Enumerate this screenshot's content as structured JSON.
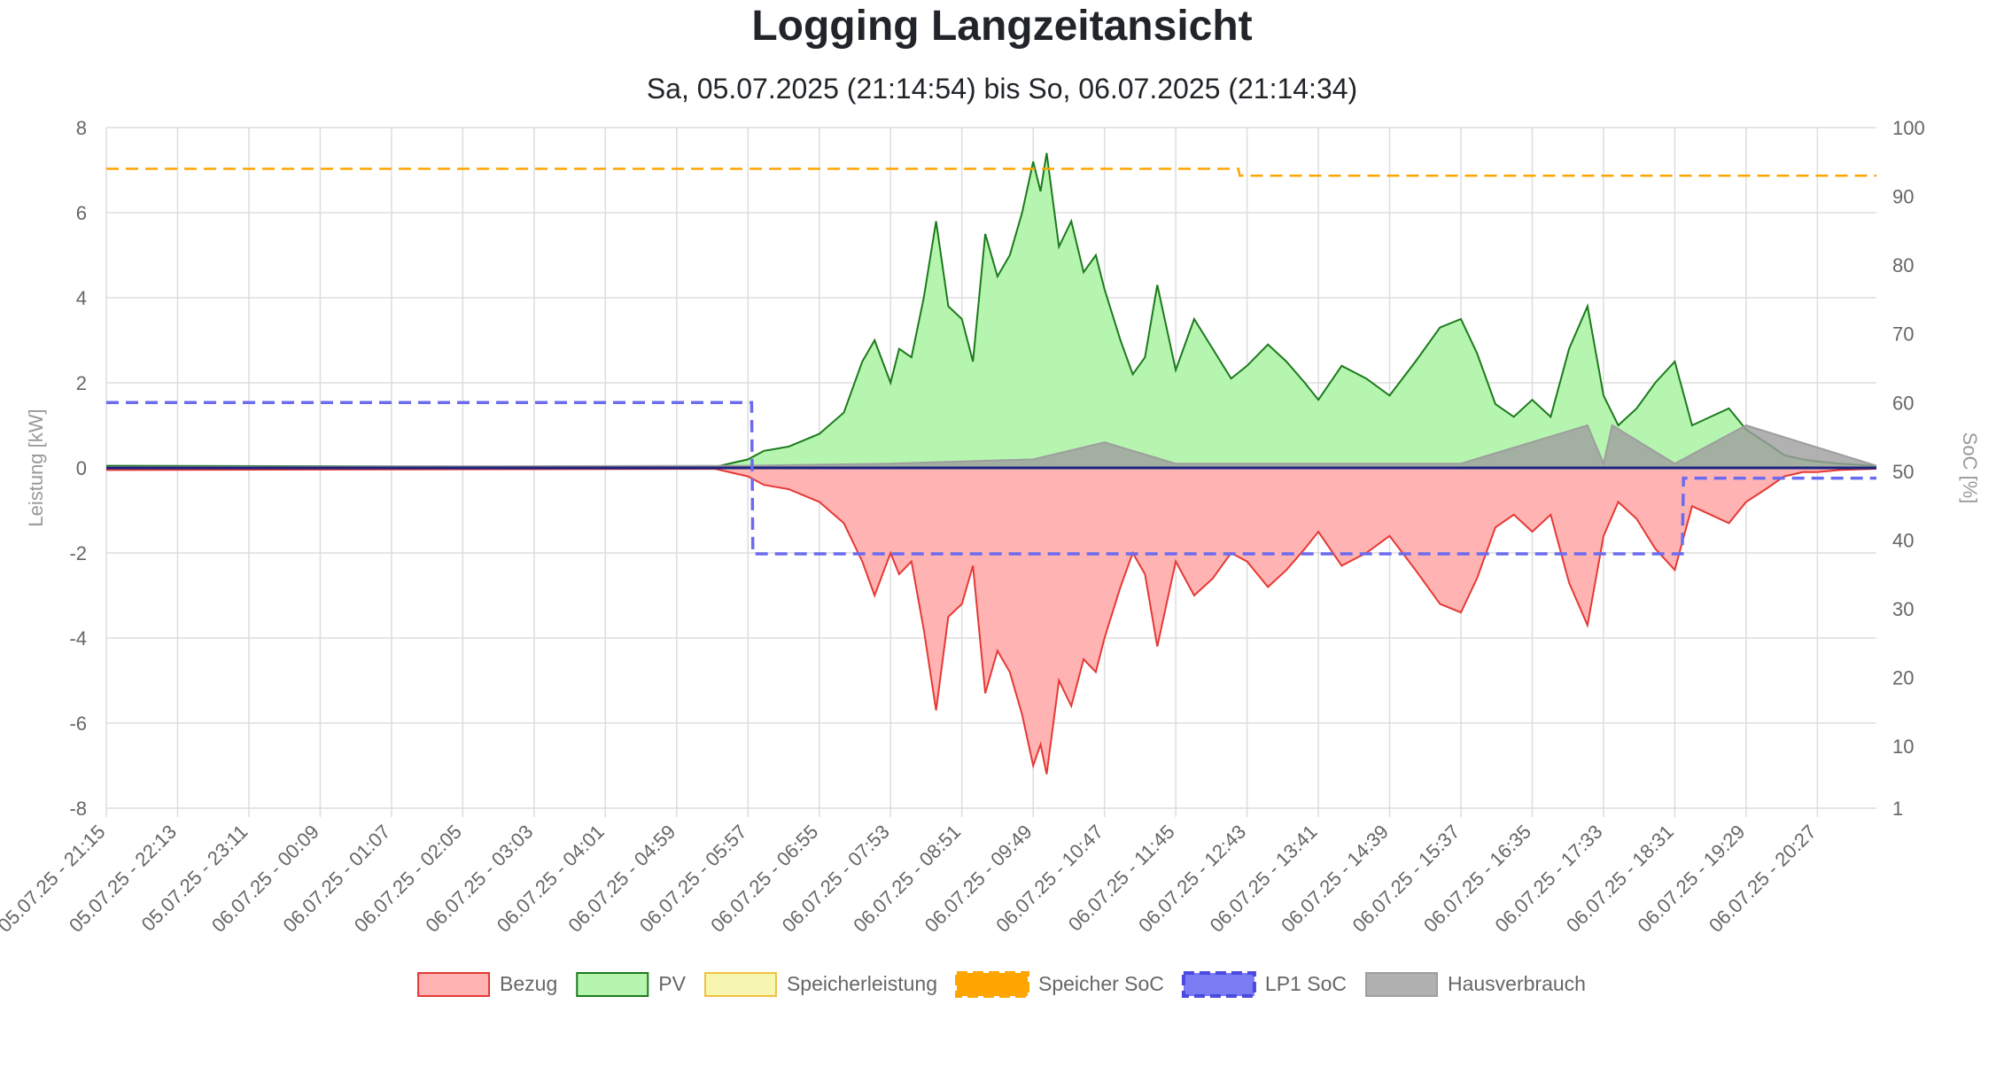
{
  "header": {
    "title": "Logging Langzeitansicht",
    "subtitle": "Sa, 05.07.2025 (21:14:54) bis So, 06.07.2025 (21:14:34)"
  },
  "colors": {
    "bezug_line": "#e53935",
    "bezug_fill": "#ffb3b3",
    "pv_line": "#1b7a1b",
    "pv_fill": "#b6f5b0",
    "speicherleistung_line": "#f0c040",
    "speicherleistung_fill": "#f6f6b0",
    "speicher_soc": "#ffa500",
    "lp1_soc": "#6b6bf0",
    "hausverbrauch": "#9e9e9e",
    "zero_line": "#1a237e",
    "grid": "#dddddd"
  },
  "chart_data": {
    "type": "area",
    "title": "Logging Langzeitansicht",
    "subtitle": "Sa, 05.07.2025 (21:14:54) bis So, 06.07.2025 (21:14:34)",
    "ylabel_left": "Leistung [kW]",
    "ylabel_right": "SoC [%]",
    "ylim_left": [
      -8,
      8
    ],
    "ylim_right": [
      1,
      100
    ],
    "yticks_left": [
      "8",
      "6",
      "4",
      "2",
      "0",
      "-2",
      "-4",
      "-6",
      "-8"
    ],
    "yticks_right": [
      "100",
      "90",
      "80",
      "70",
      "60",
      "50",
      "40",
      "30",
      "20",
      "10",
      "1"
    ],
    "x_range": [
      "05.07.25 - 21:15",
      "06.07.25 - 21:15"
    ],
    "x_tick_labels": [
      "05.07.25 - 21:15",
      "05.07.25 - 22:13",
      "05.07.25 - 23:11",
      "06.07.25 - 00:09",
      "06.07.25 - 01:07",
      "06.07.25 - 02:05",
      "06.07.25 - 03:03",
      "06.07.25 - 04:01",
      "06.07.25 - 04:59",
      "06.07.25 - 05:57",
      "06.07.25 - 06:55",
      "06.07.25 - 07:53",
      "06.07.25 - 08:51",
      "06.07.25 - 09:49",
      "06.07.25 - 10:47",
      "06.07.25 - 11:45",
      "06.07.25 - 12:43",
      "06.07.25 - 13:41",
      "06.07.25 - 14:39",
      "06.07.25 - 15:37",
      "06.07.25 - 16:35",
      "06.07.25 - 17:33",
      "06.07.25 - 18:31",
      "06.07.25 - 19:29",
      "06.07.25 - 20:27"
    ],
    "grid": true,
    "legend_position": "bottom",
    "series": [
      {
        "name": "PV",
        "axis": "left",
        "style": "area",
        "x": [
          "05.07.25 - 21:15",
          "06.07.25 - 05:30",
          "06.07.25 - 05:57",
          "06.07.25 - 06:10",
          "06.07.25 - 06:30",
          "06.07.25 - 06:55",
          "06.07.25 - 07:15",
          "06.07.25 - 07:30",
          "06.07.25 - 07:40",
          "06.07.25 - 07:53",
          "06.07.25 - 08:00",
          "06.07.25 - 08:10",
          "06.07.25 - 08:20",
          "06.07.25 - 08:30",
          "06.07.25 - 08:40",
          "06.07.25 - 08:51",
          "06.07.25 - 09:00",
          "06.07.25 - 09:10",
          "06.07.25 - 09:20",
          "06.07.25 - 09:30",
          "06.07.25 - 09:40",
          "06.07.25 - 09:49",
          "06.07.25 - 09:55",
          "06.07.25 - 10:00",
          "06.07.25 - 10:10",
          "06.07.25 - 10:20",
          "06.07.25 - 10:30",
          "06.07.25 - 10:40",
          "06.07.25 - 10:47",
          "06.07.25 - 11:00",
          "06.07.25 - 11:10",
          "06.07.25 - 11:20",
          "06.07.25 - 11:30",
          "06.07.25 - 11:45",
          "06.07.25 - 12:00",
          "06.07.25 - 12:15",
          "06.07.25 - 12:30",
          "06.07.25 - 12:43",
          "06.07.25 - 13:00",
          "06.07.25 - 13:15",
          "06.07.25 - 13:30",
          "06.07.25 - 13:41",
          "06.07.25 - 14:00",
          "06.07.25 - 14:20",
          "06.07.25 - 14:39",
          "06.07.25 - 15:00",
          "06.07.25 - 15:20",
          "06.07.25 - 15:37",
          "06.07.25 - 15:50",
          "06.07.25 - 16:05",
          "06.07.25 - 16:20",
          "06.07.25 - 16:35",
          "06.07.25 - 16:50",
          "06.07.25 - 17:05",
          "06.07.25 - 17:20",
          "06.07.25 - 17:33",
          "06.07.25 - 17:45",
          "06.07.25 - 18:00",
          "06.07.25 - 18:15",
          "06.07.25 - 18:31",
          "06.07.25 - 18:45",
          "06.07.25 - 19:00",
          "06.07.25 - 19:15",
          "06.07.25 - 19:29",
          "06.07.25 - 19:45",
          "06.07.25 - 20:00",
          "06.07.25 - 20:15",
          "06.07.25 - 20:27",
          "06.07.25 - 20:45",
          "06.07.25 - 21:15"
        ],
        "values": [
          0.05,
          0.02,
          0.2,
          0.4,
          0.5,
          0.8,
          1.3,
          2.5,
          3.0,
          2.0,
          2.8,
          2.6,
          4.0,
          5.8,
          3.8,
          3.5,
          2.5,
          5.5,
          4.5,
          5.0,
          6.0,
          7.2,
          6.5,
          7.4,
          5.2,
          5.8,
          4.6,
          5.0,
          4.2,
          3.0,
          2.2,
          2.6,
          4.3,
          2.3,
          3.5,
          2.8,
          2.1,
          2.4,
          2.9,
          2.5,
          2.0,
          1.6,
          2.4,
          2.1,
          1.7,
          2.5,
          3.3,
          3.5,
          2.7,
          1.5,
          1.2,
          1.6,
          1.2,
          2.8,
          3.8,
          1.7,
          1.0,
          1.4,
          2.0,
          2.5,
          1.0,
          1.2,
          1.4,
          0.9,
          0.6,
          0.3,
          0.2,
          0.15,
          0.1,
          0.05
        ]
      },
      {
        "name": "Bezug",
        "axis": "left",
        "style": "area",
        "x": [
          "05.07.25 - 21:15",
          "06.07.25 - 05:30",
          "06.07.25 - 05:57",
          "06.07.25 - 06:10",
          "06.07.25 - 06:30",
          "06.07.25 - 06:55",
          "06.07.25 - 07:15",
          "06.07.25 - 07:30",
          "06.07.25 - 07:40",
          "06.07.25 - 07:53",
          "06.07.25 - 08:00",
          "06.07.25 - 08:10",
          "06.07.25 - 08:20",
          "06.07.25 - 08:30",
          "06.07.25 - 08:40",
          "06.07.25 - 08:51",
          "06.07.25 - 09:00",
          "06.07.25 - 09:10",
          "06.07.25 - 09:20",
          "06.07.25 - 09:30",
          "06.07.25 - 09:40",
          "06.07.25 - 09:49",
          "06.07.25 - 09:55",
          "06.07.25 - 10:00",
          "06.07.25 - 10:10",
          "06.07.25 - 10:20",
          "06.07.25 - 10:30",
          "06.07.25 - 10:40",
          "06.07.25 - 10:47",
          "06.07.25 - 11:00",
          "06.07.25 - 11:10",
          "06.07.25 - 11:20",
          "06.07.25 - 11:30",
          "06.07.25 - 11:45",
          "06.07.25 - 12:00",
          "06.07.25 - 12:15",
          "06.07.25 - 12:30",
          "06.07.25 - 12:43",
          "06.07.25 - 13:00",
          "06.07.25 - 13:15",
          "06.07.25 - 13:30",
          "06.07.25 - 13:41",
          "06.07.25 - 14:00",
          "06.07.25 - 14:20",
          "06.07.25 - 14:39",
          "06.07.25 - 15:00",
          "06.07.25 - 15:20",
          "06.07.25 - 15:37",
          "06.07.25 - 15:50",
          "06.07.25 - 16:05",
          "06.07.25 - 16:20",
          "06.07.25 - 16:35",
          "06.07.25 - 16:50",
          "06.07.25 - 17:05",
          "06.07.25 - 17:20",
          "06.07.25 - 17:33",
          "06.07.25 - 17:45",
          "06.07.25 - 18:00",
          "06.07.25 - 18:15",
          "06.07.25 - 18:31",
          "06.07.25 - 18:45",
          "06.07.25 - 19:00",
          "06.07.25 - 19:15",
          "06.07.25 - 19:29",
          "06.07.25 - 19:45",
          "06.07.25 - 20:00",
          "06.07.25 - 20:15",
          "06.07.25 - 20:27",
          "06.07.25 - 20:45",
          "06.07.25 - 21:15"
        ],
        "values": [
          -0.05,
          -0.02,
          -0.2,
          -0.4,
          -0.5,
          -0.8,
          -1.3,
          -2.2,
          -3.0,
          -2.0,
          -2.5,
          -2.2,
          -3.8,
          -5.7,
          -3.5,
          -3.2,
          -2.3,
          -5.3,
          -4.3,
          -4.8,
          -5.8,
          -7.0,
          -6.5,
          -7.2,
          -5.0,
          -5.6,
          -4.5,
          -4.8,
          -4.0,
          -2.8,
          -2.0,
          -2.5,
          -4.2,
          -2.2,
          -3.0,
          -2.6,
          -2.0,
          -2.2,
          -2.8,
          -2.4,
          -1.9,
          -1.5,
          -2.3,
          -2.0,
          -1.6,
          -2.4,
          -3.2,
          -3.4,
          -2.6,
          -1.4,
          -1.1,
          -1.5,
          -1.1,
          -2.7,
          -3.7,
          -1.6,
          -0.8,
          -1.2,
          -1.9,
          -2.4,
          -0.9,
          -1.1,
          -1.3,
          -0.8,
          -0.5,
          -0.2,
          -0.1,
          -0.1,
          -0.05,
          -0.02
        ]
      },
      {
        "name": "Speicherleistung",
        "axis": "left",
        "style": "area",
        "x": [
          "05.07.25 - 21:15",
          "06.07.25 - 21:15"
        ],
        "values": [
          0,
          0
        ]
      },
      {
        "name": "Hausverbrauch",
        "axis": "left",
        "style": "area",
        "x": [
          "05.07.25 - 21:15",
          "06.07.25 - 05:57",
          "06.07.25 - 07:53",
          "06.07.25 - 09:49",
          "06.07.25 - 10:47",
          "06.07.25 - 11:45",
          "06.07.25 - 13:41",
          "06.07.25 - 15:37",
          "06.07.25 - 17:20",
          "06.07.25 - 17:33",
          "06.07.25 - 17:40",
          "06.07.25 - 18:31",
          "06.07.25 - 19:29",
          "06.07.25 - 21:15"
        ],
        "values": [
          0.02,
          0.05,
          0.1,
          0.2,
          0.6,
          0.1,
          0.1,
          0.1,
          1.0,
          0.1,
          1.0,
          0.1,
          1.0,
          0.05
        ]
      },
      {
        "name": "Speicher SoC",
        "axis": "right",
        "style": "dashed",
        "x": [
          "05.07.25 - 21:15",
          "06.07.25 - 12:36",
          "06.07.25 - 12:37",
          "06.07.25 - 21:15"
        ],
        "values": [
          94,
          94,
          93,
          93
        ]
      },
      {
        "name": "LP1 SoC",
        "axis": "right",
        "style": "dashed",
        "x": [
          "05.07.25 - 21:15",
          "06.07.25 - 06:00",
          "06.07.25 - 06:01",
          "06.07.25 - 18:37",
          "06.07.25 - 18:38",
          "06.07.25 - 21:15"
        ],
        "values": [
          60,
          60,
          38,
          38,
          49,
          49
        ]
      }
    ]
  }
}
